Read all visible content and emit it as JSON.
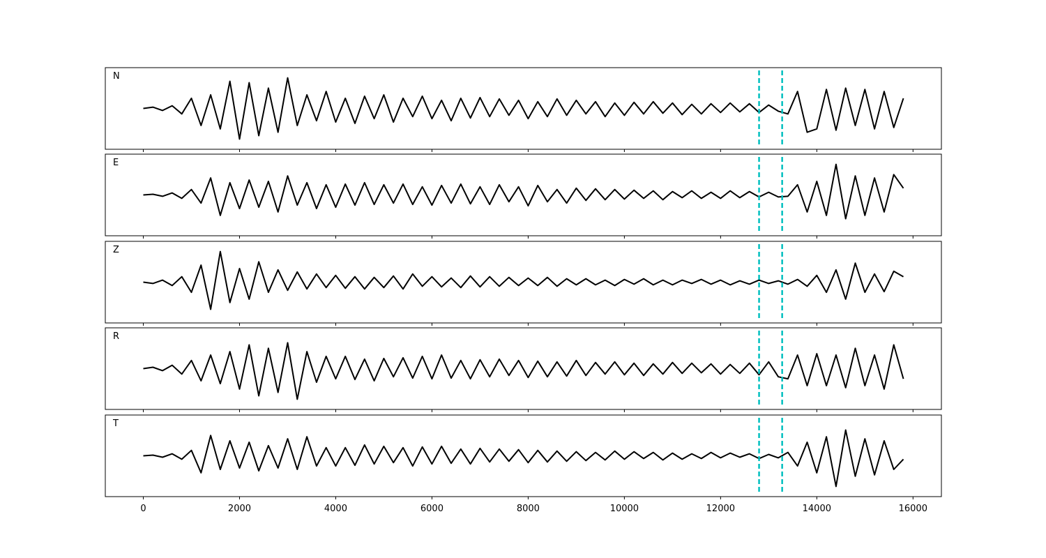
{
  "chart_data": [
    {
      "type": "line",
      "label": "N",
      "color": "#000000",
      "xlim": [
        -790,
        16590
      ],
      "ylim": [
        -60,
        60
      ],
      "vlines": [
        12800,
        13280
      ],
      "vline_color": "#00bfbf",
      "x": [
        0,
        200,
        400,
        600,
        800,
        1000,
        1200,
        1400,
        1600,
        1800,
        2000,
        2200,
        2400,
        2600,
        2800,
        3000,
        3200,
        3400,
        3600,
        3800,
        4000,
        4200,
        4400,
        4600,
        4800,
        5000,
        5200,
        5400,
        5600,
        5800,
        6000,
        6200,
        6400,
        6600,
        6800,
        7000,
        7200,
        7400,
        7600,
        7800,
        8000,
        8200,
        8400,
        8600,
        8800,
        9000,
        9200,
        9400,
        9600,
        9800,
        10000,
        10200,
        10400,
        10600,
        10800,
        11000,
        11200,
        11400,
        11600,
        11800,
        12000,
        12200,
        12400,
        12600,
        12800,
        13000,
        13200,
        13400,
        13600,
        13800,
        14000,
        14200,
        14400,
        14600,
        14800,
        15000,
        15200,
        15400,
        15600,
        15800
      ],
      "values": [
        0,
        2,
        -3,
        4,
        -8,
        15,
        -25,
        20,
        -30,
        40,
        -45,
        38,
        -40,
        30,
        -35,
        45,
        -25,
        20,
        -18,
        25,
        -20,
        15,
        -22,
        18,
        -15,
        20,
        -20,
        15,
        -12,
        18,
        -15,
        12,
        -18,
        15,
        -14,
        16,
        -12,
        14,
        -10,
        12,
        -15,
        10,
        -12,
        14,
        -10,
        12,
        -8,
        10,
        -12,
        8,
        -10,
        9,
        -8,
        10,
        -7,
        8,
        -9,
        6,
        -8,
        7,
        -6,
        8,
        -5,
        7,
        -6,
        5,
        -4,
        -8,
        25,
        -35,
        -30,
        28,
        -32,
        30,
        -25,
        28,
        -30,
        25,
        -28,
        15
      ]
    },
    {
      "type": "line",
      "label": "E",
      "color": "#000000",
      "xlim": [
        -790,
        16590
      ],
      "ylim": [
        -60,
        60
      ],
      "vlines": [
        12800,
        13280
      ],
      "vline_color": "#00bfbf",
      "x": [
        0,
        200,
        400,
        600,
        800,
        1000,
        1200,
        1400,
        1600,
        1800,
        2000,
        2200,
        2400,
        2600,
        2800,
        3000,
        3200,
        3400,
        3600,
        3800,
        4000,
        4200,
        4400,
        4600,
        4800,
        5000,
        5200,
        5400,
        5600,
        5800,
        6000,
        6200,
        6400,
        6600,
        6800,
        7000,
        7200,
        7400,
        7600,
        7800,
        8000,
        8200,
        8400,
        8600,
        8800,
        9000,
        9200,
        9400,
        9600,
        9800,
        10000,
        10200,
        10400,
        10600,
        10800,
        11000,
        11200,
        11400,
        11600,
        11800,
        12000,
        12200,
        12400,
        12600,
        12800,
        13000,
        13200,
        13400,
        13600,
        13800,
        14000,
        14200,
        14400,
        14600,
        14800,
        15000,
        15200,
        15400,
        15600,
        15800
      ],
      "values": [
        0,
        1,
        -2,
        3,
        -5,
        8,
        -12,
        25,
        -30,
        18,
        -20,
        22,
        -18,
        20,
        -25,
        28,
        -15,
        18,
        -20,
        15,
        -18,
        16,
        -15,
        18,
        -14,
        15,
        -12,
        16,
        -14,
        12,
        -15,
        14,
        -12,
        16,
        -13,
        12,
        -14,
        15,
        -10,
        12,
        -16,
        14,
        -10,
        8,
        -12,
        10,
        -8,
        9,
        -7,
        8,
        -6,
        7,
        -5,
        6,
        -7,
        5,
        -4,
        6,
        -5,
        4,
        -5,
        6,
        -4,
        5,
        -3,
        4,
        -3,
        -2,
        15,
        -25,
        20,
        -30,
        45,
        -35,
        28,
        -30,
        25,
        -25,
        30,
        10
      ]
    },
    {
      "type": "line",
      "label": "Z",
      "color": "#000000",
      "xlim": [
        -790,
        16590
      ],
      "ylim": [
        -60,
        60
      ],
      "vlines": [
        12800,
        13280
      ],
      "vline_color": "#00bfbf",
      "x": [
        0,
        200,
        400,
        600,
        800,
        1000,
        1200,
        1400,
        1600,
        1800,
        2000,
        2200,
        2400,
        2600,
        2800,
        3000,
        3200,
        3400,
        3600,
        3800,
        4000,
        4200,
        4400,
        4600,
        4800,
        5000,
        5200,
        5400,
        5600,
        5800,
        6000,
        6200,
        6400,
        6600,
        6800,
        7000,
        7200,
        7400,
        7600,
        7800,
        8000,
        8200,
        8400,
        8600,
        8800,
        9000,
        9200,
        9400,
        9600,
        9800,
        10000,
        10200,
        10400,
        10600,
        10800,
        11000,
        11200,
        11400,
        11600,
        11800,
        12000,
        12200,
        12400,
        12600,
        12800,
        13000,
        13200,
        13400,
        13600,
        13800,
        14000,
        14200,
        14400,
        14600,
        14800,
        15000,
        15200,
        15400,
        15600,
        15800
      ],
      "values": [
        0,
        -2,
        3,
        -5,
        8,
        -15,
        25,
        -40,
        45,
        -30,
        20,
        -25,
        30,
        -15,
        18,
        -12,
        15,
        -10,
        12,
        -8,
        10,
        -9,
        8,
        -10,
        7,
        -8,
        9,
        -10,
        12,
        -6,
        8,
        -7,
        6,
        -8,
        9,
        -7,
        8,
        -6,
        7,
        -5,
        6,
        -5,
        7,
        -6,
        5,
        -4,
        5,
        -4,
        3,
        -5,
        4,
        -3,
        5,
        -4,
        3,
        -4,
        3,
        -2,
        4,
        -3,
        3,
        -4,
        2,
        -3,
        3,
        -2,
        2,
        -3,
        4,
        -6,
        10,
        -15,
        18,
        -25,
        28,
        -15,
        12,
        -14,
        16,
        8
      ]
    },
    {
      "type": "line",
      "label": "R",
      "color": "#000000",
      "xlim": [
        -790,
        16590
      ],
      "ylim": [
        -60,
        60
      ],
      "vlines": [
        12800,
        13280
      ],
      "vline_color": "#00bfbf",
      "x": [
        0,
        200,
        400,
        600,
        800,
        1000,
        1200,
        1400,
        1600,
        1800,
        2000,
        2200,
        2400,
        2600,
        2800,
        3000,
        3200,
        3400,
        3600,
        3800,
        4000,
        4200,
        4400,
        4600,
        4800,
        5000,
        5200,
        5400,
        5600,
        5800,
        6000,
        6200,
        6400,
        6600,
        6800,
        7000,
        7200,
        7400,
        7600,
        7800,
        8000,
        8200,
        8400,
        8600,
        8800,
        9000,
        9200,
        9400,
        9600,
        9800,
        10000,
        10200,
        10400,
        10600,
        10800,
        11000,
        11200,
        11400,
        11600,
        11800,
        12000,
        12200,
        12400,
        12600,
        12800,
        13000,
        13200,
        13400,
        13600,
        13800,
        14000,
        14200,
        14400,
        14600,
        14800,
        15000,
        15200,
        15400,
        15600,
        15800
      ],
      "values": [
        0,
        2,
        -3,
        5,
        -8,
        12,
        -18,
        20,
        -22,
        25,
        -30,
        35,
        -40,
        30,
        -35,
        38,
        -45,
        25,
        -20,
        18,
        -15,
        18,
        -16,
        14,
        -18,
        15,
        -12,
        16,
        -14,
        18,
        -15,
        20,
        -14,
        12,
        -15,
        13,
        -12,
        14,
        -10,
        12,
        -13,
        11,
        -12,
        10,
        -11,
        12,
        -10,
        9,
        -8,
        10,
        -9,
        8,
        -10,
        7,
        -8,
        9,
        -7,
        8,
        -6,
        7,
        -8,
        6,
        -7,
        8,
        -9,
        10,
        -12,
        -15,
        20,
        -25,
        22,
        -25,
        20,
        -28,
        30,
        -25,
        20,
        -30,
        35,
        -15
      ]
    },
    {
      "type": "line",
      "label": "T",
      "color": "#000000",
      "xlim": [
        -790,
        16590
      ],
      "ylim": [
        -60,
        60
      ],
      "vlines": [
        12800,
        13280
      ],
      "vline_color": "#00bfbf",
      "xticks": [
        0,
        2000,
        4000,
        6000,
        8000,
        10000,
        12000,
        14000,
        16000
      ],
      "x": [
        0,
        200,
        400,
        600,
        800,
        1000,
        1200,
        1400,
        1600,
        1800,
        2000,
        2200,
        2400,
        2600,
        2800,
        3000,
        3200,
        3400,
        3600,
        3800,
        4000,
        4200,
        4400,
        4600,
        4800,
        5000,
        5200,
        5400,
        5600,
        5800,
        6000,
        6200,
        6400,
        6600,
        6800,
        7000,
        7200,
        7400,
        7600,
        7800,
        8000,
        8200,
        8400,
        8600,
        8800,
        9000,
        9200,
        9400,
        9600,
        9800,
        10000,
        10200,
        10400,
        10600,
        10800,
        11000,
        11200,
        11400,
        11600,
        11800,
        12000,
        12200,
        12400,
        12600,
        12800,
        13000,
        13200,
        13400,
        13600,
        13800,
        14000,
        14200,
        14400,
        14600,
        14800,
        15000,
        15200,
        15400,
        15600,
        15800
      ],
      "values": [
        0,
        1,
        -2,
        3,
        -5,
        8,
        -25,
        30,
        -20,
        22,
        -18,
        20,
        -22,
        15,
        -18,
        25,
        -20,
        28,
        -15,
        12,
        -15,
        12,
        -14,
        16,
        -12,
        14,
        -10,
        12,
        -15,
        13,
        -12,
        14,
        -11,
        10,
        -12,
        11,
        -9,
        10,
        -8,
        9,
        -10,
        8,
        -9,
        7,
        -8,
        6,
        -7,
        5,
        -6,
        7,
        -5,
        6,
        -4,
        5,
        -6,
        4,
        -5,
        3,
        -4,
        5,
        -3,
        4,
        -2,
        3,
        -4,
        2,
        -3,
        5,
        -15,
        20,
        -25,
        28,
        -45,
        38,
        -30,
        25,
        -28,
        22,
        -20,
        -5
      ]
    }
  ]
}
